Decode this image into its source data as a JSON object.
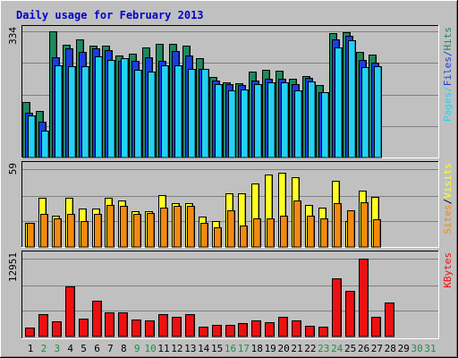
{
  "chart_data": {
    "type": "bar",
    "title": "Daily usage for February 2013",
    "colors": {
      "hits": "#1d8a5e",
      "files": "#1a3fe0",
      "pages": "#22d2f5",
      "visits": "#ffff22",
      "sites": "#f28a10",
      "kbytes": "#ee1010",
      "title": "#0000cc",
      "weekend_day": "#1f8f3f",
      "weekday_day": "#000000",
      "panel_bg": "#c0c0c0",
      "gridline": "#808080"
    },
    "days": [
      "1",
      "2",
      "3",
      "4",
      "5",
      "6",
      "7",
      "8",
      "9",
      "10",
      "11",
      "12",
      "13",
      "14",
      "15",
      "16",
      "17",
      "18",
      "19",
      "20",
      "21",
      "22",
      "23",
      "24",
      "25",
      "26",
      "27",
      "28",
      "29",
      "30",
      "31"
    ],
    "weekend_days": [
      "2",
      "3",
      "9",
      "10",
      "16",
      "17",
      "23",
      "24",
      "30",
      "31"
    ],
    "panels": [
      {
        "key": "hits_files_pages",
        "ymax": 334,
        "ymax_label": "334",
        "legend": [
          "Pages",
          "Files",
          "Hits"
        ],
        "series": [
          {
            "name": "Hits",
            "color_key": "hits",
            "values": [
              147,
              123,
              334,
              299,
              312,
              297,
              296,
              270,
              274,
              291,
              300,
              300,
              295,
              262,
              214,
              200,
              196,
              228,
              233,
              230,
              208,
              216,
              193,
              329,
              331,
              279,
              272,
              0,
              0,
              0,
              0
            ]
          },
          {
            "name": "Files",
            "color_key": "files",
            "values": [
              119,
              95,
              266,
              289,
              280,
              289,
              285,
              256,
              255,
              265,
              255,
              283,
              269,
              234,
              203,
              195,
              193,
              204,
              209,
              208,
              195,
              210,
              172,
              313,
              322,
              258,
              251,
              0,
              0,
              0,
              0
            ]
          },
          {
            "name": "Pages",
            "color_key": "pages",
            "values": [
              111,
              70,
              245,
              241,
              241,
              268,
              258,
              264,
              232,
              227,
              243,
              245,
              235,
              235,
              194,
              178,
              180,
              195,
              200,
              199,
              177,
              201,
              173,
              291,
              311,
              239,
              242,
              0,
              0,
              0,
              0
            ]
          }
        ]
      },
      {
        "key": "visits_sites",
        "ymax": 59,
        "ymax_label": "59",
        "legend": [
          "Sites",
          "/",
          "Visits"
        ],
        "series": [
          {
            "name": "Visits",
            "color_key": "visits",
            "values": [
              18,
              37,
              24,
              37,
              29,
              29,
              37,
              35,
              27,
              27,
              39,
              33,
              33,
              23,
              20,
              41,
              41,
              48,
              55,
              56,
              53,
              32,
              30,
              50,
              20,
              43,
              38,
              0,
              0,
              0,
              0
            ]
          },
          {
            "name": "Sites",
            "color_key": "sites",
            "values": [
              18,
              25,
              22,
              25,
              20,
              25,
              32,
              31,
              25,
              26,
              30,
              31,
              31,
              18,
              15,
              28,
              16,
              22,
              22,
              24,
              35,
              24,
              22,
              33,
              28,
              34,
              21,
              0,
              0,
              0,
              0
            ]
          }
        ]
      },
      {
        "key": "kbytes",
        "ymax": 12951,
        "ymax_label": "12951",
        "legend": [
          "KBytes"
        ],
        "series": [
          {
            "name": "KBytes",
            "color_key": "kbytes",
            "values": [
              1520,
              3750,
              2580,
              8300,
              3050,
              5930,
              4000,
              3950,
              2840,
              2670,
              3710,
              3210,
              3690,
              1610,
              1900,
              1900,
              2180,
              2650,
              2350,
              3320,
              2620,
              1790,
              1710,
              9700,
              7550,
              12951,
              3300,
              5690,
              0,
              0,
              0
            ]
          }
        ]
      }
    ]
  }
}
